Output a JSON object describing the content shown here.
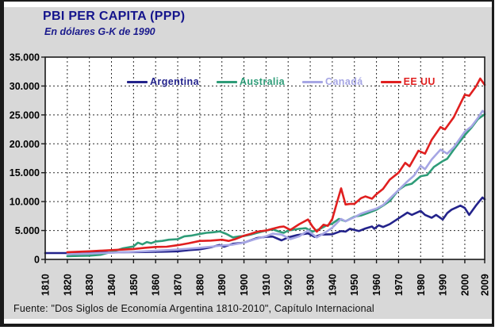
{
  "page": {
    "background_color": "#d8d8d8",
    "plot_background_color": "#ffffff",
    "frame_color": "#1a1a1a"
  },
  "header": {
    "title": "PBI PER CAPITA (PPP)",
    "subtitle": "En dólares G-K de 1990",
    "title_color": "#14148c"
  },
  "footer": {
    "source": "Fuente: \"Dos Siglos de Economía Argentina 1810-2010\", Capítulo Internacional"
  },
  "chart_data": {
    "type": "line",
    "title": "PBI PER CAPITA (PPP)",
    "subtitle": "En dólares G-K de 1990",
    "xlabel": "",
    "ylabel": "",
    "x_range": [
      1810,
      2009
    ],
    "y_range": [
      0,
      35000
    ],
    "grid": "dashed-black",
    "legend_position": "top-inside",
    "x_tick_values": [
      1810,
      1820,
      1830,
      1840,
      1850,
      1860,
      1870,
      1880,
      1890,
      1900,
      1910,
      1920,
      1930,
      1940,
      1950,
      1960,
      1970,
      1980,
      1990,
      2000,
      2009
    ],
    "x_tick_labels": [
      "1810",
      "1820",
      "1830",
      "1840",
      "1850",
      "1860",
      "1870",
      "1880",
      "1890",
      "1900",
      "1910",
      "1920",
      "1930",
      "1940",
      "1950",
      "1960",
      "1970",
      "1980",
      "1990",
      "2000",
      "2009"
    ],
    "y_tick_values": [
      0,
      5000,
      10000,
      15000,
      20000,
      25000,
      30000,
      35000
    ],
    "y_tick_labels": [
      "0",
      "5.000",
      "10.000",
      "15.000",
      "20.000",
      "25.000",
      "30.000",
      "35.000"
    ],
    "series": [
      {
        "name": "Argentina",
        "color": "#23238b",
        "points": [
          [
            1810,
            1100
          ],
          [
            1815,
            1100
          ],
          [
            1820,
            1100
          ],
          [
            1825,
            1150
          ],
          [
            1830,
            1150
          ],
          [
            1835,
            1180
          ],
          [
            1840,
            1200
          ],
          [
            1845,
            1230
          ],
          [
            1850,
            1260
          ],
          [
            1855,
            1280
          ],
          [
            1860,
            1300
          ],
          [
            1865,
            1350
          ],
          [
            1870,
            1400
          ],
          [
            1875,
            1600
          ],
          [
            1880,
            1750
          ],
          [
            1885,
            2100
          ],
          [
            1889,
            2500
          ],
          [
            1891,
            2200
          ],
          [
            1895,
            2700
          ],
          [
            1900,
            2900
          ],
          [
            1903,
            3300
          ],
          [
            1906,
            3700
          ],
          [
            1910,
            3900
          ],
          [
            1913,
            3950
          ],
          [
            1917,
            3300
          ],
          [
            1920,
            3800
          ],
          [
            1924,
            4200
          ],
          [
            1929,
            4500
          ],
          [
            1932,
            3900
          ],
          [
            1935,
            4300
          ],
          [
            1940,
            4350
          ],
          [
            1944,
            4900
          ],
          [
            1946,
            4800
          ],
          [
            1948,
            5300
          ],
          [
            1952,
            4900
          ],
          [
            1955,
            5350
          ],
          [
            1958,
            5700
          ],
          [
            1959,
            5300
          ],
          [
            1961,
            5900
          ],
          [
            1963,
            5600
          ],
          [
            1966,
            6100
          ],
          [
            1970,
            7100
          ],
          [
            1974,
            8100
          ],
          [
            1976,
            7700
          ],
          [
            1980,
            8400
          ],
          [
            1982,
            7700
          ],
          [
            1985,
            7200
          ],
          [
            1987,
            7700
          ],
          [
            1990,
            6900
          ],
          [
            1992,
            8000
          ],
          [
            1994,
            8600
          ],
          [
            1998,
            9300
          ],
          [
            2000,
            8900
          ],
          [
            2002,
            7700
          ],
          [
            2005,
            9300
          ],
          [
            2008,
            10700
          ],
          [
            2009,
            10400
          ]
        ]
      },
      {
        "name": "Australia",
        "color": "#2e9c78",
        "points": [
          [
            1820,
            550
          ],
          [
            1825,
            600
          ],
          [
            1830,
            650
          ],
          [
            1835,
            800
          ],
          [
            1840,
            1300
          ],
          [
            1845,
            1900
          ],
          [
            1850,
            2250
          ],
          [
            1852,
            2900
          ],
          [
            1854,
            2600
          ],
          [
            1856,
            3000
          ],
          [
            1858,
            2800
          ],
          [
            1860,
            3100
          ],
          [
            1863,
            3200
          ],
          [
            1866,
            3400
          ],
          [
            1870,
            3500
          ],
          [
            1873,
            4000
          ],
          [
            1876,
            4100
          ],
          [
            1880,
            4400
          ],
          [
            1883,
            4600
          ],
          [
            1886,
            4700
          ],
          [
            1889,
            4850
          ],
          [
            1892,
            4400
          ],
          [
            1895,
            3800
          ],
          [
            1898,
            4000
          ],
          [
            1900,
            4050
          ],
          [
            1903,
            4300
          ],
          [
            1906,
            4600
          ],
          [
            1910,
            5000
          ],
          [
            1913,
            5200
          ],
          [
            1916,
            4800
          ],
          [
            1918,
            4600
          ],
          [
            1920,
            5000
          ],
          [
            1925,
            5300
          ],
          [
            1928,
            5400
          ],
          [
            1931,
            4800
          ],
          [
            1934,
            5200
          ],
          [
            1937,
            5800
          ],
          [
            1940,
            6200
          ],
          [
            1943,
            7000
          ],
          [
            1946,
            6600
          ],
          [
            1950,
            7400
          ],
          [
            1953,
            7600
          ],
          [
            1956,
            8000
          ],
          [
            1960,
            8600
          ],
          [
            1963,
            9300
          ],
          [
            1966,
            10100
          ],
          [
            1970,
            12000
          ],
          [
            1973,
            12800
          ],
          [
            1976,
            13100
          ],
          [
            1980,
            14400
          ],
          [
            1983,
            14600
          ],
          [
            1986,
            16000
          ],
          [
            1990,
            17000
          ],
          [
            1992,
            17400
          ],
          [
            1995,
            19000
          ],
          [
            2000,
            21500
          ],
          [
            2003,
            22800
          ],
          [
            2006,
            24300
          ],
          [
            2009,
            25100
          ]
        ]
      },
      {
        "name": "Canadá",
        "color": "#a6a6e4",
        "points": [
          [
            1820,
            900
          ],
          [
            1830,
            1000
          ],
          [
            1840,
            1150
          ],
          [
            1850,
            1300
          ],
          [
            1860,
            1500
          ],
          [
            1870,
            1700
          ],
          [
            1875,
            1850
          ],
          [
            1880,
            2000
          ],
          [
            1885,
            2200
          ],
          [
            1890,
            2400
          ],
          [
            1895,
            2550
          ],
          [
            1900,
            2900
          ],
          [
            1905,
            3500
          ],
          [
            1910,
            4000
          ],
          [
            1913,
            4450
          ],
          [
            1917,
            4300
          ],
          [
            1921,
            3500
          ],
          [
            1925,
            4000
          ],
          [
            1929,
            5000
          ],
          [
            1933,
            3800
          ],
          [
            1937,
            4700
          ],
          [
            1940,
            5500
          ],
          [
            1944,
            7000
          ],
          [
            1946,
            6600
          ],
          [
            1950,
            7300
          ],
          [
            1953,
            7900
          ],
          [
            1956,
            8300
          ],
          [
            1960,
            8800
          ],
          [
            1963,
            9400
          ],
          [
            1966,
            10500
          ],
          [
            1970,
            12000
          ],
          [
            1974,
            13500
          ],
          [
            1977,
            14500
          ],
          [
            1980,
            16200
          ],
          [
            1982,
            15600
          ],
          [
            1985,
            17300
          ],
          [
            1989,
            19000
          ],
          [
            1992,
            18300
          ],
          [
            1995,
            19400
          ],
          [
            2000,
            22100
          ],
          [
            2003,
            23000
          ],
          [
            2006,
            24500
          ],
          [
            2008,
            25700
          ],
          [
            2009,
            25400
          ]
        ]
      },
      {
        "name": "EE UU",
        "color": "#e01f1f",
        "points": [
          [
            1820,
            1250
          ],
          [
            1830,
            1400
          ],
          [
            1840,
            1600
          ],
          [
            1850,
            1800
          ],
          [
            1855,
            2000
          ],
          [
            1860,
            2150
          ],
          [
            1865,
            2200
          ],
          [
            1870,
            2450
          ],
          [
            1875,
            2800
          ],
          [
            1880,
            3200
          ],
          [
            1885,
            3250
          ],
          [
            1890,
            3400
          ],
          [
            1893,
            3200
          ],
          [
            1896,
            3500
          ],
          [
            1900,
            4100
          ],
          [
            1903,
            4400
          ],
          [
            1906,
            4800
          ],
          [
            1910,
            5000
          ],
          [
            1913,
            5300
          ],
          [
            1916,
            5600
          ],
          [
            1918,
            5700
          ],
          [
            1921,
            5100
          ],
          [
            1925,
            6100
          ],
          [
            1929,
            6900
          ],
          [
            1931,
            5700
          ],
          [
            1933,
            4800
          ],
          [
            1936,
            6000
          ],
          [
            1938,
            5800
          ],
          [
            1940,
            7000
          ],
          [
            1942,
            9700
          ],
          [
            1944,
            12300
          ],
          [
            1946,
            9500
          ],
          [
            1948,
            9600
          ],
          [
            1950,
            9600
          ],
          [
            1953,
            10600
          ],
          [
            1955,
            10900
          ],
          [
            1958,
            10500
          ],
          [
            1960,
            11300
          ],
          [
            1963,
            12200
          ],
          [
            1966,
            13800
          ],
          [
            1970,
            15000
          ],
          [
            1973,
            16700
          ],
          [
            1975,
            16100
          ],
          [
            1979,
            18800
          ],
          [
            1982,
            18300
          ],
          [
            1985,
            20700
          ],
          [
            1989,
            22900
          ],
          [
            1991,
            22500
          ],
          [
            1995,
            24600
          ],
          [
            2000,
            28500
          ],
          [
            2002,
            28300
          ],
          [
            2005,
            29900
          ],
          [
            2007,
            31300
          ],
          [
            2009,
            30200
          ]
        ]
      }
    ]
  }
}
